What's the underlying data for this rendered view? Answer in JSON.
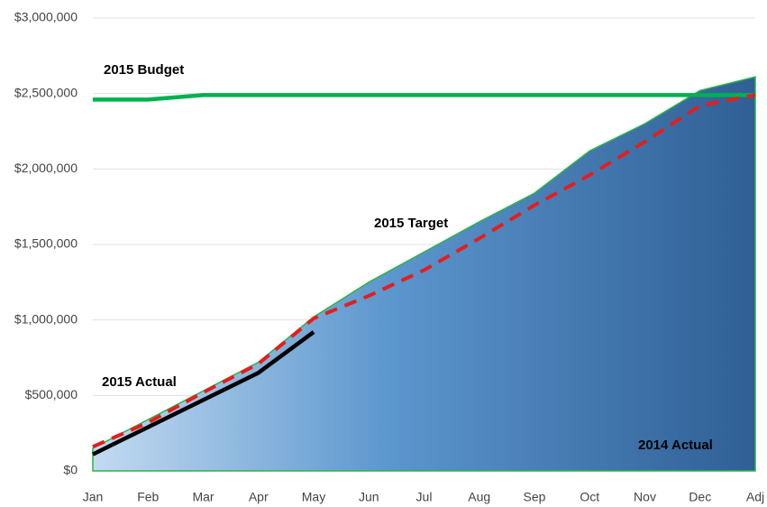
{
  "chart_data": {
    "type": "line",
    "categories": [
      "Jan",
      "Feb",
      "Mar",
      "Apr",
      "May",
      "Jun",
      "Jul",
      "Aug",
      "Sep",
      "Oct",
      "Nov",
      "Dec",
      "Adj"
    ],
    "series": [
      {
        "name": "2014 Actual",
        "kind": "area",
        "color": "#2f5f95",
        "edge_color": "#2bb34a",
        "values": [
          150000,
          340000,
          530000,
          720000,
          1020000,
          1250000,
          1450000,
          1650000,
          1840000,
          2120000,
          2300000,
          2520000,
          2610000
        ]
      },
      {
        "name": "2015 Budget",
        "kind": "line",
        "color": "#00b050",
        "values": [
          2460000,
          2460000,
          2490000,
          2490000,
          2490000,
          2490000,
          2490000,
          2490000,
          2490000,
          2490000,
          2490000,
          2490000,
          2490000
        ]
      },
      {
        "name": "2015 Target",
        "kind": "dashed",
        "color": "#e41e1e",
        "values": [
          160000,
          320000,
          520000,
          710000,
          1010000,
          1160000,
          1330000,
          1540000,
          1760000,
          1960000,
          2180000,
          2420000,
          2490000
        ]
      },
      {
        "name": "2015 Actual",
        "kind": "line",
        "color": "#000000",
        "values": [
          110000,
          290000,
          470000,
          650000,
          920000,
          null,
          null,
          null,
          null,
          null,
          null,
          null,
          null
        ]
      }
    ],
    "ylim": [
      0,
      3000000
    ],
    "yticks": [
      {
        "value": 0,
        "label": "$0"
      },
      {
        "value": 500000,
        "label": "$500,000"
      },
      {
        "value": 1000000,
        "label": "$1,000,000"
      },
      {
        "value": 1500000,
        "label": "$1,500,000"
      },
      {
        "value": 2000000,
        "label": "$2,000,000"
      },
      {
        "value": 2500000,
        "label": "$2,500,000"
      },
      {
        "value": 3000000,
        "label": "$3,000,000"
      }
    ],
    "grid": true
  }
}
